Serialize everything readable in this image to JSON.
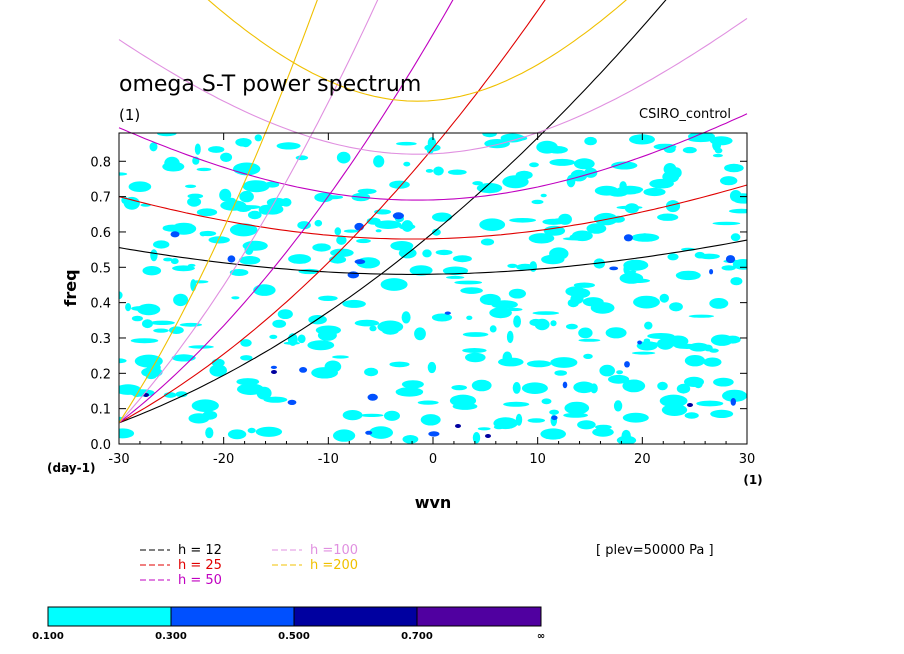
{
  "chart_data": {
    "type": "contour",
    "title": "omega S-T power spectrum",
    "subtitle": "(1)",
    "dataset_label": "CSIRO_control",
    "xlabel": "wvn",
    "x_units": "(1)",
    "ylabel": "freq",
    "y_units": "(day-1)",
    "xlim": [
      -30,
      30
    ],
    "ylim": [
      0,
      0.88
    ],
    "xticks": [
      -30,
      -20,
      -10,
      0,
      10,
      20,
      30
    ],
    "yticks": [
      0.0,
      0.1,
      0.2,
      0.3,
      0.4,
      0.5,
      0.6,
      0.7,
      0.8
    ],
    "annotation": "[ plev=50000 Pa ]",
    "dispersion_curves": [
      {
        "name": "h = 12",
        "h": 12,
        "color": "#000000"
      },
      {
        "name": "h = 25",
        "h": 25,
        "color": "#e00000"
      },
      {
        "name": "h = 50",
        "h": 50,
        "color": "#c000c0"
      },
      {
        "name": "h =100",
        "h": 100,
        "color": "#e090e0"
      },
      {
        "name": "h =200",
        "h": 200,
        "color": "#f0c000"
      }
    ],
    "colorbar": {
      "levels": [
        "0.100",
        "0.300",
        "0.500",
        "0.700",
        "∞"
      ],
      "colors": [
        "#00ffff",
        "#0050ff",
        "#0000a0",
        "#5000a0"
      ]
    }
  }
}
